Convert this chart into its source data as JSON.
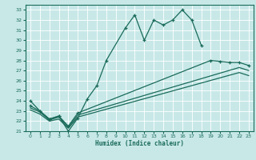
{
  "xlabel": "Humidex (Indice chaleur)",
  "background_color": "#c8e8e8",
  "grid_color": "#ffffff",
  "line_color": "#1a6b5a",
  "xlim": [
    -0.5,
    23.5
  ],
  "ylim": [
    21,
    33.5
  ],
  "xticks": [
    0,
    1,
    2,
    3,
    4,
    5,
    6,
    7,
    8,
    9,
    10,
    11,
    12,
    13,
    14,
    15,
    16,
    17,
    18,
    19,
    20,
    21,
    22,
    23
  ],
  "yticks": [
    21,
    22,
    23,
    24,
    25,
    26,
    27,
    28,
    29,
    30,
    31,
    32,
    33
  ],
  "jagged_x": [
    0,
    1,
    2,
    3,
    4,
    5,
    6,
    7,
    8,
    10,
    11,
    12,
    13,
    14,
    15,
    16,
    17,
    18
  ],
  "jagged_y": [
    24.0,
    23.0,
    22.2,
    22.5,
    21.0,
    22.3,
    24.2,
    25.5,
    28.0,
    31.2,
    32.5,
    30.0,
    32.0,
    31.5,
    32.0,
    33.0,
    32.0,
    29.5
  ],
  "smooth1_x": [
    0,
    1,
    2,
    3,
    4,
    5,
    19,
    20,
    21,
    22,
    23
  ],
  "smooth1_y": [
    23.5,
    23.0,
    22.2,
    22.5,
    21.5,
    22.8,
    28.0,
    27.9,
    27.8,
    27.8,
    27.5
  ],
  "smooth2_x": [
    0,
    1,
    2,
    3,
    4,
    5,
    22,
    23
  ],
  "smooth2_y": [
    23.3,
    22.9,
    22.1,
    22.4,
    21.4,
    22.6,
    27.3,
    27.0
  ],
  "smooth3_x": [
    0,
    1,
    2,
    3,
    4,
    5,
    22,
    23
  ],
  "smooth3_y": [
    23.1,
    22.7,
    22.0,
    22.2,
    21.3,
    22.4,
    26.8,
    26.5
  ],
  "jagged_marker_x": [
    0,
    1,
    2,
    3,
    4,
    5,
    6,
    7,
    8,
    10,
    11,
    12,
    13,
    14,
    15,
    16,
    17,
    18
  ],
  "smooth1_marker_x": [
    0,
    1,
    2,
    3,
    4,
    5,
    19,
    20,
    21,
    22,
    23
  ],
  "smooth1_marker_y": [
    23.5,
    23.0,
    22.2,
    22.5,
    21.5,
    22.8,
    28.0,
    27.9,
    27.8,
    27.8,
    27.5
  ]
}
